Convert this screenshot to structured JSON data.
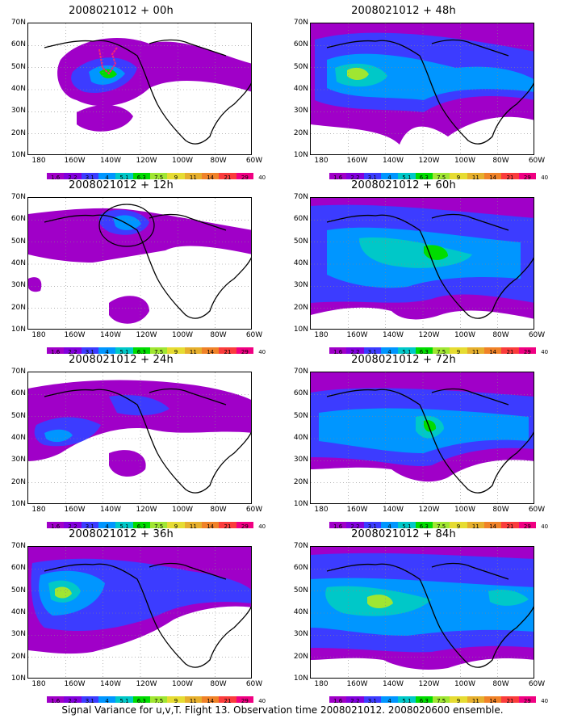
{
  "caption": "Signal Variance for u,v,T. Flight 13. Observation time 2008021012. 2008020600 ensemble.",
  "lat_labels": [
    "70N",
    "60N",
    "50N",
    "40N",
    "30N",
    "20N",
    "10N"
  ],
  "lon_labels": [
    "180",
    "160W",
    "140W",
    "120W",
    "100W",
    "80W",
    "60W"
  ],
  "colorbar": {
    "levels": [
      "1.6",
      "2.2",
      "3.1",
      "4",
      "5.1",
      "6.3",
      "7.5",
      "9",
      "11",
      "14",
      "21",
      "29",
      "40"
    ],
    "colors": [
      "#a000c8",
      "#8200dc",
      "#3c3cff",
      "#0096ff",
      "#00c8c8",
      "#00dc00",
      "#a0e632",
      "#e6dc32",
      "#e6af2d",
      "#f08228",
      "#fa3c3c",
      "#f00082"
    ]
  },
  "panels": [
    {
      "title": "2008021012 + 00h",
      "col": 0,
      "row": 0
    },
    {
      "title": "2008021012 + 48h",
      "col": 1,
      "row": 0
    },
    {
      "title": "2008021012 + 12h",
      "col": 0,
      "row": 1
    },
    {
      "title": "2008021012 + 60h",
      "col": 1,
      "row": 1
    },
    {
      "title": "2008021012 + 24h",
      "col": 0,
      "row": 2
    },
    {
      "title": "2008021012 + 72h",
      "col": 1,
      "row": 2
    },
    {
      "title": "2008021012 + 36h",
      "col": 0,
      "row": 3
    },
    {
      "title": "2008021012 + 84h",
      "col": 1,
      "row": 3
    }
  ]
}
